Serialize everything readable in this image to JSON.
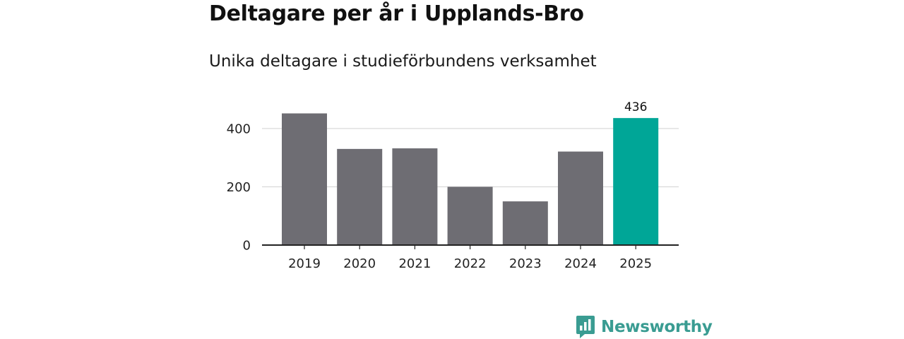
{
  "header": {
    "title": "Deltagare per år i Upplands-Bro",
    "subtitle": "Unika deltagare i studieförbundens verksamhet"
  },
  "brand": {
    "name": "Newsworthy",
    "icon": "newsworthy-logo-icon",
    "color": "#3a9c92"
  },
  "colors": {
    "bar_default": "#6e6d73",
    "bar_highlight": "#00a697",
    "gridline": "#d9d9d9",
    "axis": "#222222"
  },
  "chart_data": {
    "type": "bar",
    "categories": [
      "2019",
      "2020",
      "2021",
      "2022",
      "2023",
      "2024",
      "2025"
    ],
    "values": [
      452,
      330,
      332,
      200,
      150,
      321,
      436
    ],
    "highlight_index": 6,
    "data_labels": [
      {
        "index": 6,
        "text": "436"
      }
    ],
    "title": "Deltagare per år i Upplands-Bro",
    "subtitle": "Unika deltagare i studieförbundens verksamhet",
    "xlabel": "",
    "ylabel": "",
    "ylim": [
      0,
      450
    ],
    "yticks": [
      0,
      200,
      400
    ],
    "grid": true,
    "legend": "none"
  }
}
